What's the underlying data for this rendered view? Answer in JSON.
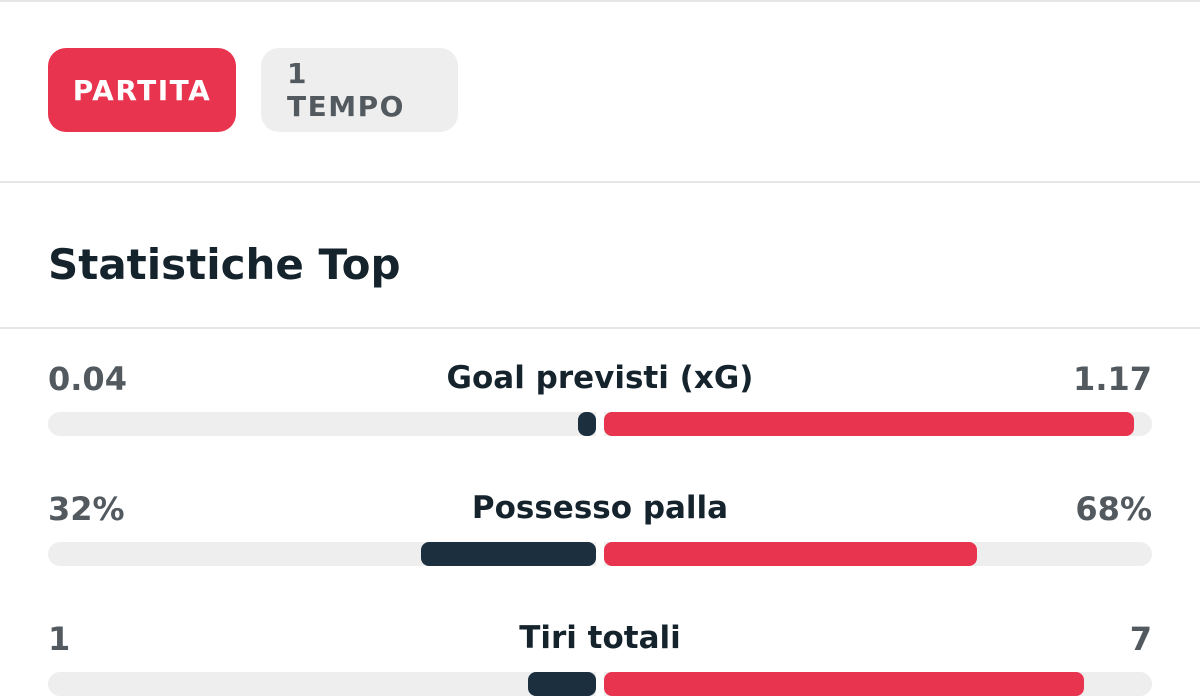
{
  "tabs": [
    {
      "label": "PARTITA",
      "active": true
    },
    {
      "label": "1 TEMPO",
      "active": false
    }
  ],
  "section_title": "Statistiche Top",
  "colors": {
    "home": "#1b2f3e",
    "away": "#e9344f",
    "accent": "#e9344f"
  },
  "stats": [
    {
      "label": "Goal previsti (xG)",
      "home": "0.04",
      "away": "1.17",
      "home_share": 0.033,
      "away_share": 0.967
    },
    {
      "label": "Possesso palla",
      "home": "32%",
      "away": "68%",
      "home_share": 0.32,
      "away_share": 0.68
    },
    {
      "label": "Tiri totali",
      "home": "1",
      "away": "7",
      "home_share": 0.125,
      "away_share": 0.875
    }
  ]
}
